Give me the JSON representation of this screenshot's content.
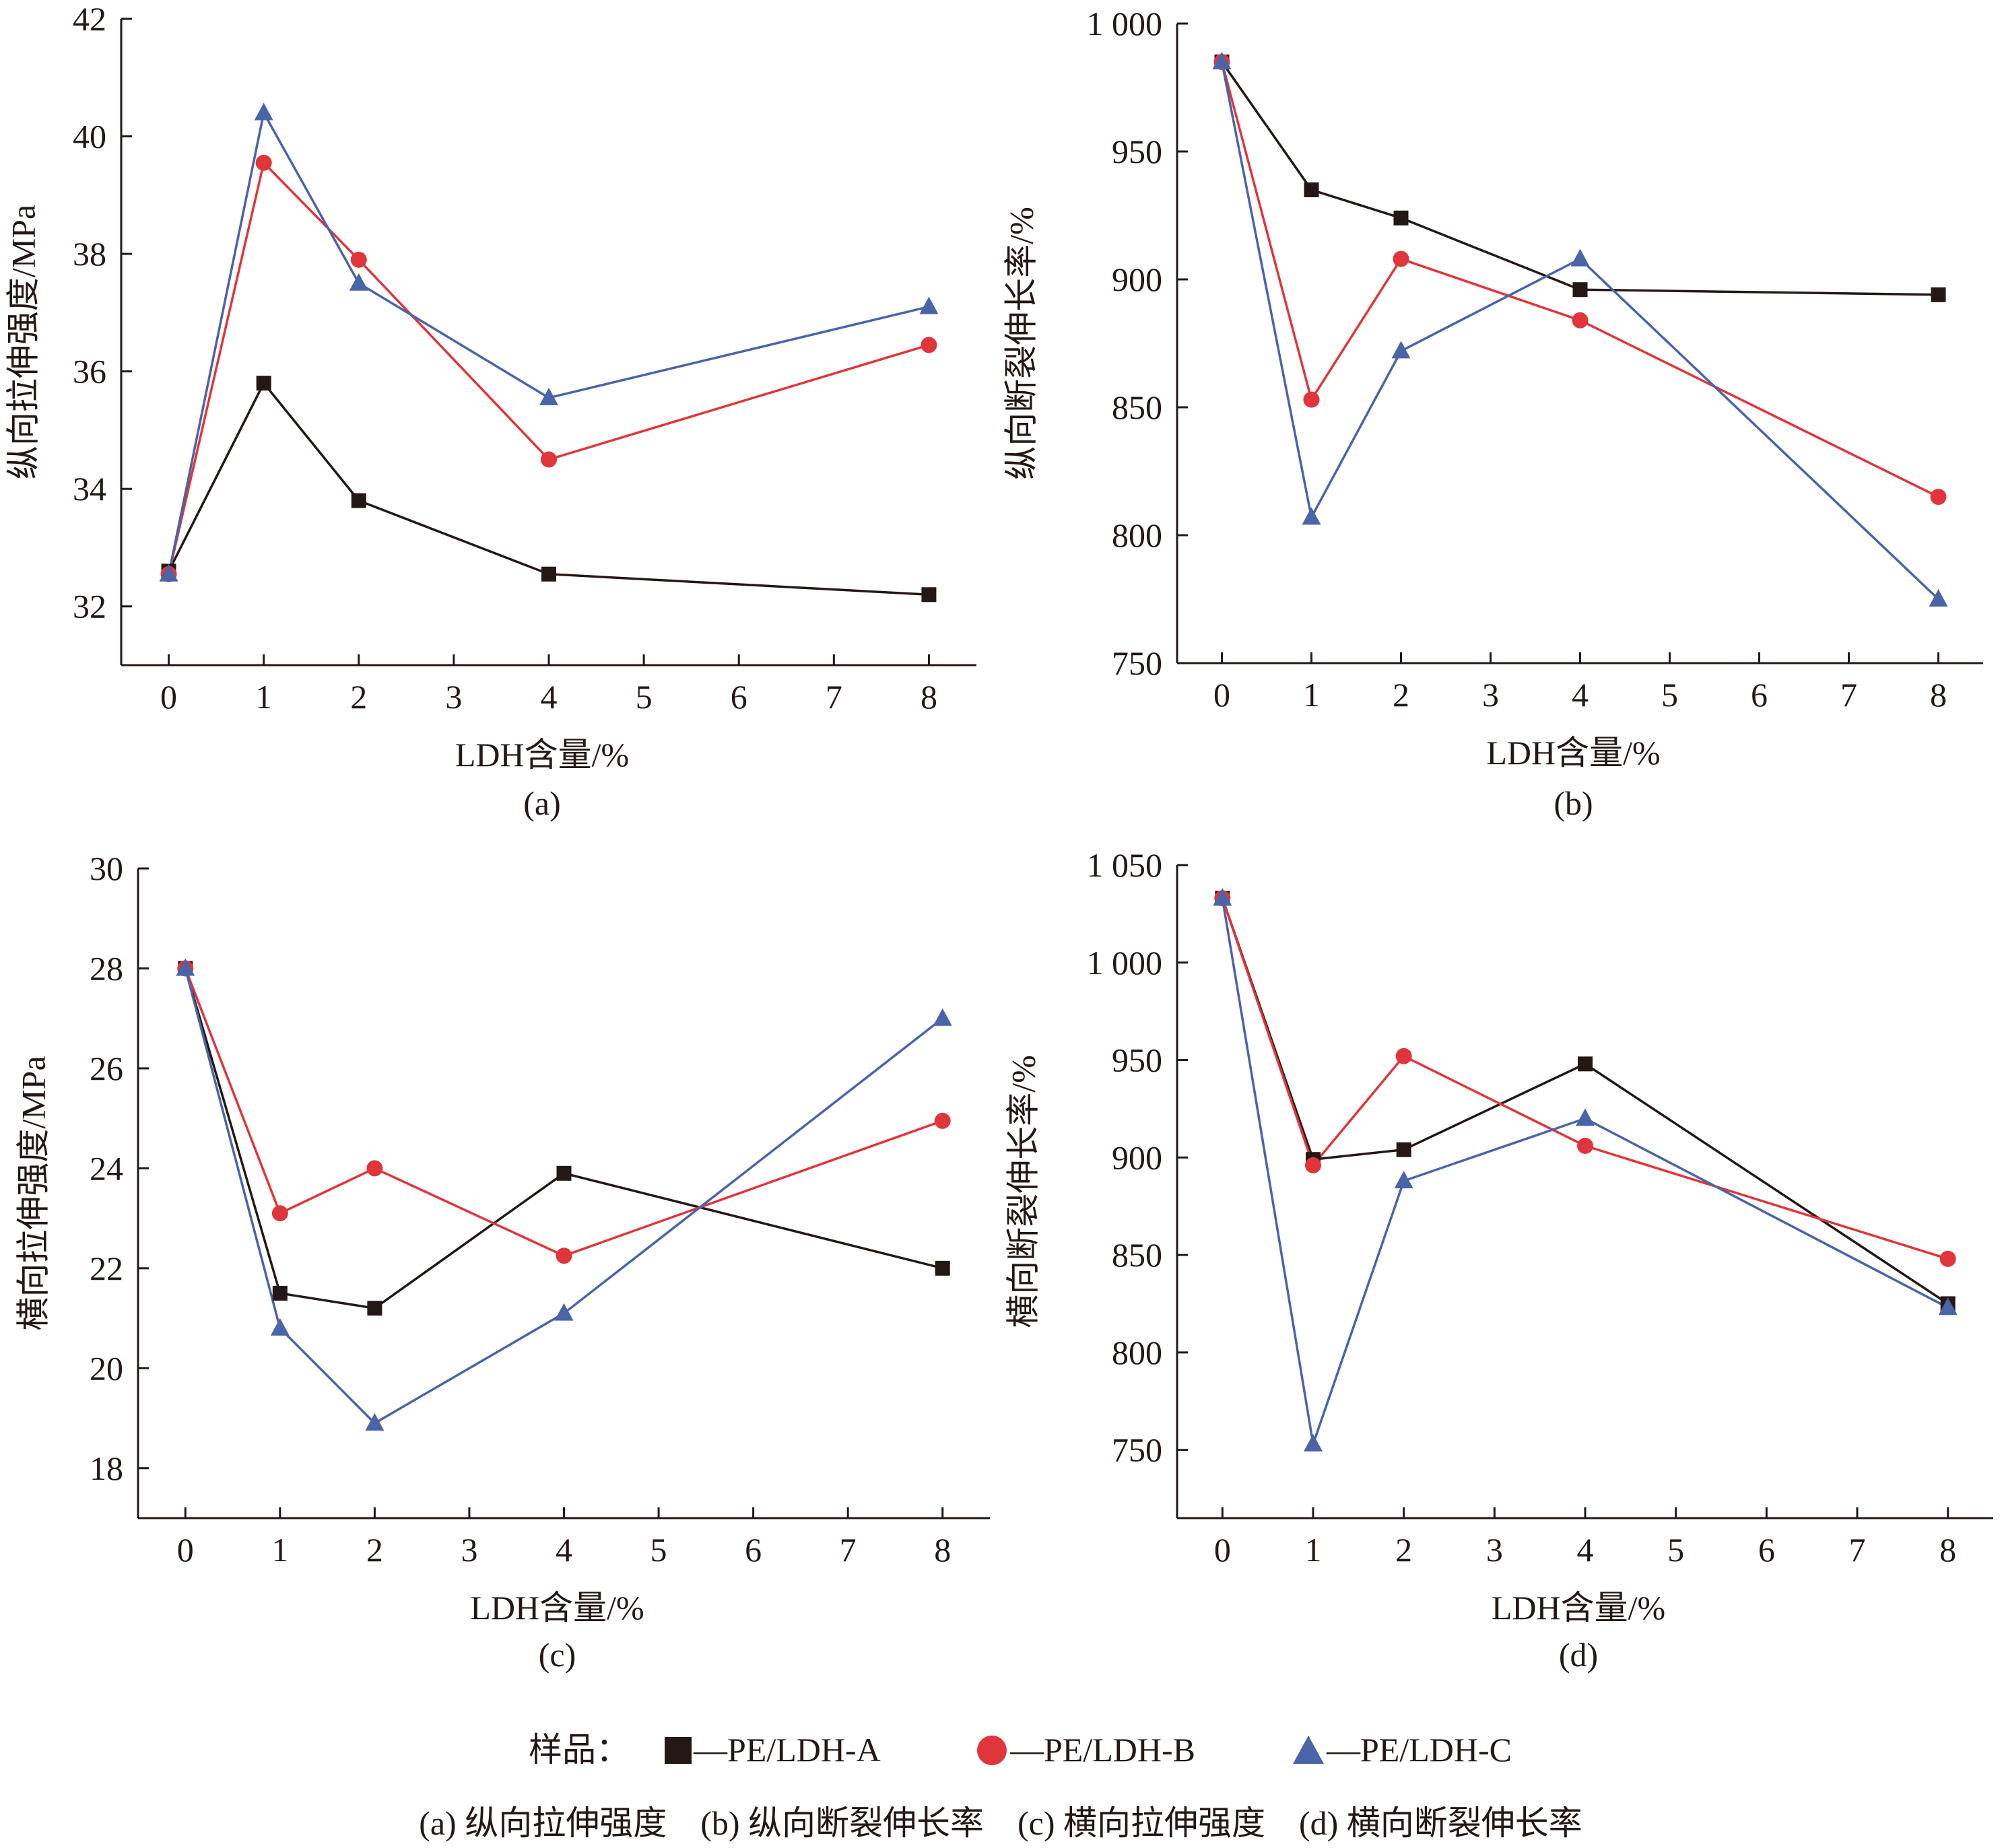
{
  "legend": {
    "prefix": "样品：",
    "series_names": [
      "—PE/LDH-A",
      "—PE/LDH-B",
      "—PE/LDH-C"
    ]
  },
  "caption": "(a) 纵向拉伸强度　(b) 纵向断裂伸长率　(c) 横向拉伸强度　(d) 横向断裂伸长率",
  "colors": {
    "PE/LDH-A": "#231815",
    "PE/LDH-B": "#e0353b",
    "PE/LDH-C": "#4a64a8",
    "axis": "#231815"
  },
  "markers": {
    "PE/LDH-A": "square",
    "PE/LDH-B": "circle",
    "PE/LDH-C": "triangle"
  },
  "chart_data": [
    {
      "panel": "(a)",
      "type": "line",
      "xlabel": "LDH含量/%",
      "ylabel": "纵向拉伸强度/MPa",
      "x_ticks": [
        "0",
        "1",
        "2",
        "3",
        "4",
        "5",
        "6",
        "7",
        "8"
      ],
      "y_ticks": [
        "32",
        "34",
        "36",
        "38",
        "40",
        "42"
      ],
      "xlim": [
        -0.5,
        8.5
      ],
      "ylim": [
        31,
        42
      ],
      "x": [
        0,
        1,
        2,
        4,
        8
      ],
      "series": [
        {
          "name": "PE/LDH-A",
          "values": [
            32.6,
            35.8,
            33.8,
            32.55,
            32.2
          ]
        },
        {
          "name": "PE/LDH-B",
          "values": [
            32.55,
            39.55,
            37.9,
            34.5,
            36.45
          ]
        },
        {
          "name": "PE/LDH-C",
          "values": [
            32.55,
            40.4,
            37.5,
            35.55,
            37.1
          ]
        }
      ]
    },
    {
      "panel": "(b)",
      "type": "line",
      "xlabel": "LDH含量/%",
      "ylabel": "纵向断裂伸长率/%",
      "x_ticks": [
        "0",
        "1",
        "2",
        "3",
        "4",
        "5",
        "6",
        "7",
        "8"
      ],
      "y_ticks": [
        "750",
        "800",
        "850",
        "900",
        "950",
        "1 000"
      ],
      "xlim": [
        -0.5,
        8.5
      ],
      "ylim": [
        750,
        1000
      ],
      "x": [
        0,
        1,
        2,
        4,
        8
      ],
      "series": [
        {
          "name": "PE/LDH-A",
          "values": [
            985,
            935,
            924,
            896,
            894
          ]
        },
        {
          "name": "PE/LDH-B",
          "values": [
            985,
            853,
            908,
            884,
            815
          ]
        },
        {
          "name": "PE/LDH-C",
          "values": [
            985,
            807,
            872,
            908,
            775
          ]
        }
      ]
    },
    {
      "panel": "(c)",
      "type": "line",
      "xlabel": "LDH含量/%",
      "ylabel": "横向拉伸强度/MPa",
      "x_ticks": [
        "0",
        "1",
        "2",
        "3",
        "4",
        "5",
        "6",
        "7",
        "8"
      ],
      "y_ticks": [
        "18",
        "20",
        "22",
        "24",
        "26",
        "28",
        "30"
      ],
      "xlim": [
        -0.5,
        8.5
      ],
      "ylim": [
        17,
        30
      ],
      "x": [
        0,
        1,
        2,
        4,
        8
      ],
      "series": [
        {
          "name": "PE/LDH-A",
          "values": [
            28,
            21.5,
            21.2,
            23.9,
            22
          ]
        },
        {
          "name": "PE/LDH-B",
          "values": [
            28,
            23.1,
            24,
            22.25,
            24.95
          ]
        },
        {
          "name": "PE/LDH-C",
          "values": [
            28,
            20.8,
            18.9,
            21.1,
            27
          ]
        }
      ]
    },
    {
      "panel": "(d)",
      "type": "line",
      "xlabel": "LDH含量/%",
      "ylabel": "横向断裂伸长率/%",
      "x_ticks": [
        "0",
        "1",
        "2",
        "3",
        "4",
        "5",
        "6",
        "7",
        "8"
      ],
      "y_ticks": [
        "750",
        "800",
        "850",
        "900",
        "950",
        "1 000",
        "1 050"
      ],
      "xlim": [
        -0.5,
        8.5
      ],
      "ylim": [
        715,
        1050
      ],
      "x": [
        0,
        1,
        2,
        4,
        8
      ],
      "series": [
        {
          "name": "PE/LDH-A",
          "values": [
            1033,
            899,
            904,
            948,
            825
          ]
        },
        {
          "name": "PE/LDH-B",
          "values": [
            1033,
            896,
            952,
            906,
            848
          ]
        },
        {
          "name": "PE/LDH-C",
          "values": [
            1033,
            753,
            888,
            920,
            823
          ]
        }
      ]
    }
  ]
}
